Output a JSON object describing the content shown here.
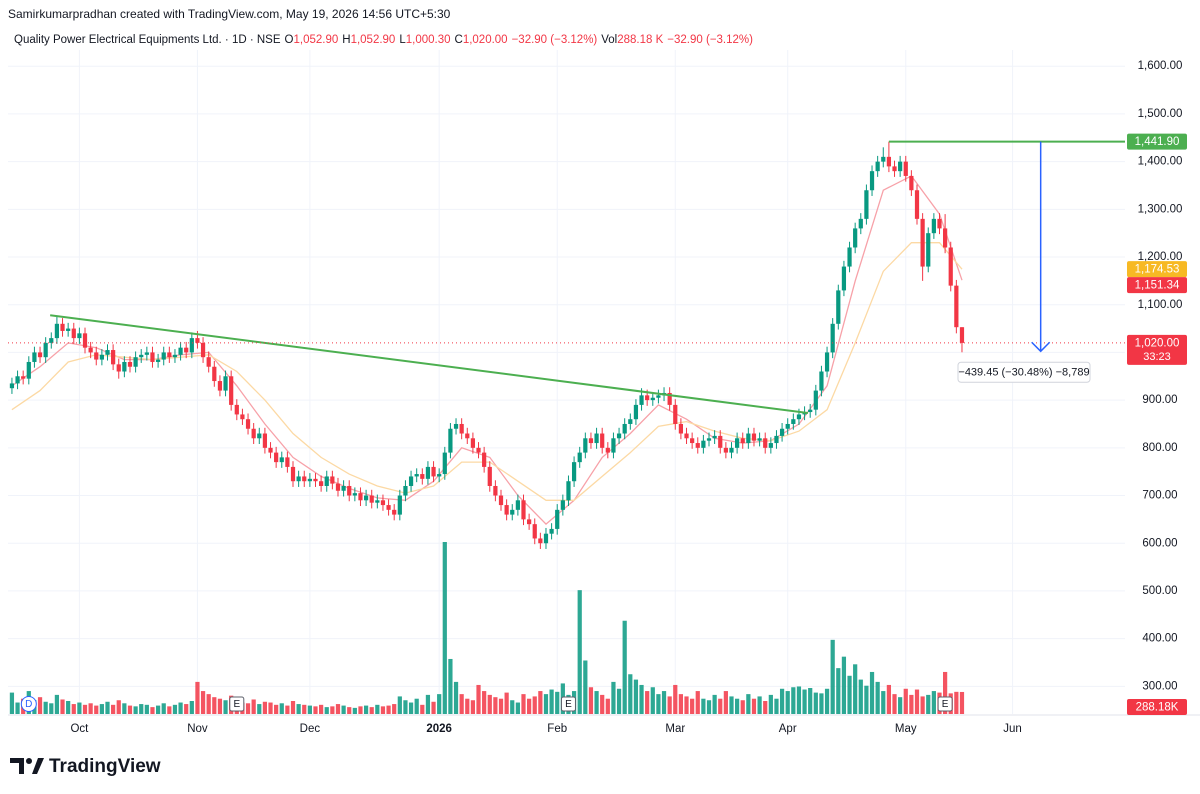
{
  "header": {
    "credit": "Samirkumarpradhan created with TradingView.com, May 19, 2026 14:56 UTC+5:30",
    "symbol": "Quality Power Electrical Equipments Ltd. · 1D · NSE",
    "legend": [
      {
        "k": "O",
        "v": "1,052.90"
      },
      {
        "k": "H",
        "v": "1,052.90"
      },
      {
        "k": "L",
        "v": "1,000.30"
      },
      {
        "k": "C",
        "v": "1,020.00"
      },
      {
        "k": "",
        "v": "−32.90 (−3.12%)"
      },
      {
        "k": "Vol",
        "v": "288.18 K"
      },
      {
        "k": "",
        "v": "−32.90 (−3.12%)"
      }
    ]
  },
  "footer": {
    "brand": "TradingView"
  },
  "chart_data": {
    "type": "candlestick",
    "up_color": "#089981",
    "down_color": "#f23645",
    "grid": true,
    "xlim": [
      -0.7,
      198
    ],
    "ylim": [
      242,
      1634
    ],
    "vlim": [
      0,
      2250
    ],
    "xticks": [
      {
        "value": 12,
        "label": "Oct"
      },
      {
        "value": 33,
        "label": "Nov"
      },
      {
        "value": 53,
        "label": "Dec"
      },
      {
        "value": 76,
        "label": "2026"
      },
      {
        "value": 97,
        "label": "Feb"
      },
      {
        "value": 118,
        "label": "Mar"
      },
      {
        "value": 138,
        "label": "Apr"
      },
      {
        "value": 159,
        "label": "May"
      },
      {
        "value": 178,
        "label": "Jun"
      }
    ],
    "yticks": [
      {
        "value": 300,
        "label": "300.00"
      },
      {
        "value": 400,
        "label": "400.00"
      },
      {
        "value": 500,
        "label": "500.00"
      },
      {
        "value": 600,
        "label": "600.00"
      },
      {
        "value": 700,
        "label": "700.00"
      },
      {
        "value": 800,
        "label": "800.00"
      },
      {
        "value": 900,
        "label": "900.00"
      },
      {
        "value": 1000,
        "label": "1,000.00"
      },
      {
        "value": 1100,
        "label": "1,100.00"
      },
      {
        "value": 1200,
        "label": "1,200.00"
      },
      {
        "value": 1300,
        "label": "1,300.00"
      },
      {
        "value": 1400,
        "label": "1,400.00"
      },
      {
        "value": 1500,
        "label": "1,500.00"
      },
      {
        "value": 1600,
        "label": "1,600.00"
      }
    ],
    "ohlc": [
      [
        925,
        947,
        913,
        935
      ],
      [
        935,
        962,
        923,
        950
      ],
      [
        950,
        962,
        933,
        945
      ],
      [
        945,
        992,
        933,
        980
      ],
      [
        980,
        1012,
        968,
        1000
      ],
      [
        1000,
        1012,
        978,
        990
      ],
      [
        990,
        1032,
        978,
        1020
      ],
      [
        1020,
        1042,
        1008,
        1030
      ],
      [
        1030,
        1075,
        1018,
        1060
      ],
      [
        1060,
        1072,
        1033,
        1045
      ],
      [
        1045,
        1062,
        1033,
        1050
      ],
      [
        1050,
        1062,
        1018,
        1030
      ],
      [
        1030,
        1052,
        1018,
        1040
      ],
      [
        1040,
        1052,
        998,
        1010
      ],
      [
        1010,
        1022,
        988,
        1000
      ],
      [
        1000,
        1012,
        973,
        985
      ],
      [
        985,
        1007,
        973,
        995
      ],
      [
        995,
        1017,
        983,
        1005
      ],
      [
        1005,
        1017,
        963,
        975
      ],
      [
        975,
        987,
        945,
        960
      ],
      [
        960,
        992,
        948,
        980
      ],
      [
        980,
        992,
        958,
        970
      ],
      [
        970,
        1002,
        958,
        990
      ],
      [
        990,
        1007,
        978,
        995
      ],
      [
        995,
        1012,
        983,
        1000
      ],
      [
        1000,
        1012,
        968,
        980
      ],
      [
        980,
        997,
        968,
        985
      ],
      [
        985,
        1012,
        973,
        1000
      ],
      [
        1000,
        1012,
        978,
        990
      ],
      [
        990,
        1007,
        978,
        995
      ],
      [
        995,
        1022,
        983,
        1010
      ],
      [
        1010,
        1022,
        988,
        1000
      ],
      [
        1000,
        1042,
        988,
        1030
      ],
      [
        1030,
        1045,
        1008,
        1020
      ],
      [
        1020,
        1032,
        978,
        990
      ],
      [
        990,
        1002,
        958,
        970
      ],
      [
        970,
        982,
        928,
        940
      ],
      [
        940,
        952,
        908,
        920
      ],
      [
        920,
        962,
        908,
        950
      ],
      [
        950,
        962,
        878,
        890
      ],
      [
        890,
        902,
        858,
        870
      ],
      [
        870,
        882,
        848,
        860
      ],
      [
        860,
        872,
        828,
        840
      ],
      [
        840,
        852,
        808,
        820
      ],
      [
        820,
        842,
        808,
        830
      ],
      [
        830,
        842,
        788,
        800
      ],
      [
        800,
        812,
        778,
        790
      ],
      [
        790,
        802,
        758,
        770
      ],
      [
        770,
        792,
        758,
        780
      ],
      [
        780,
        792,
        748,
        760
      ],
      [
        760,
        772,
        718,
        730
      ],
      [
        730,
        752,
        718,
        740
      ],
      [
        740,
        752,
        718,
        730
      ],
      [
        730,
        747,
        718,
        735
      ],
      [
        735,
        747,
        718,
        730
      ],
      [
        730,
        742,
        708,
        720
      ],
      [
        720,
        752,
        708,
        740
      ],
      [
        740,
        752,
        713,
        725
      ],
      [
        725,
        737,
        698,
        710
      ],
      [
        710,
        732,
        698,
        720
      ],
      [
        720,
        732,
        688,
        700
      ],
      [
        700,
        717,
        688,
        705
      ],
      [
        705,
        717,
        678,
        690
      ],
      [
        690,
        712,
        678,
        700
      ],
      [
        700,
        712,
        673,
        685
      ],
      [
        685,
        702,
        673,
        690
      ],
      [
        690,
        702,
        668,
        680
      ],
      [
        680,
        692,
        658,
        670
      ],
      [
        670,
        682,
        648,
        660
      ],
      [
        660,
        712,
        648,
        700
      ],
      [
        700,
        732,
        688,
        720
      ],
      [
        720,
        752,
        708,
        740
      ],
      [
        740,
        757,
        728,
        745
      ],
      [
        745,
        757,
        723,
        735
      ],
      [
        735,
        772,
        723,
        760
      ],
      [
        760,
        772,
        728,
        740
      ],
      [
        740,
        757,
        728,
        745
      ],
      [
        745,
        802,
        733,
        790
      ],
      [
        790,
        852,
        778,
        840
      ],
      [
        840,
        862,
        828,
        850
      ],
      [
        850,
        862,
        818,
        830
      ],
      [
        830,
        842,
        808,
        820
      ],
      [
        820,
        832,
        788,
        800
      ],
      [
        800,
        812,
        778,
        790
      ],
      [
        790,
        802,
        748,
        760
      ],
      [
        760,
        772,
        708,
        720
      ],
      [
        720,
        732,
        688,
        700
      ],
      [
        700,
        712,
        668,
        680
      ],
      [
        680,
        692,
        648,
        660
      ],
      [
        660,
        682,
        648,
        670
      ],
      [
        670,
        702,
        658,
        690
      ],
      [
        690,
        702,
        638,
        650
      ],
      [
        650,
        662,
        628,
        640
      ],
      [
        640,
        652,
        598,
        610
      ],
      [
        610,
        622,
        588,
        600
      ],
      [
        600,
        632,
        588,
        620
      ],
      [
        620,
        642,
        608,
        630
      ],
      [
        630,
        682,
        618,
        670
      ],
      [
        670,
        702,
        658,
        690
      ],
      [
        690,
        742,
        678,
        730
      ],
      [
        730,
        782,
        718,
        770
      ],
      [
        770,
        802,
        758,
        790
      ],
      [
        790,
        832,
        778,
        820
      ],
      [
        820,
        832,
        798,
        810
      ],
      [
        810,
        842,
        798,
        830
      ],
      [
        830,
        842,
        788,
        800
      ],
      [
        800,
        812,
        778,
        790
      ],
      [
        790,
        832,
        778,
        820
      ],
      [
        820,
        842,
        808,
        830
      ],
      [
        830,
        862,
        818,
        850
      ],
      [
        850,
        872,
        838,
        860
      ],
      [
        860,
        902,
        848,
        890
      ],
      [
        890,
        925,
        878,
        910
      ],
      [
        910,
        922,
        888,
        900
      ],
      [
        900,
        917,
        888,
        905
      ],
      [
        905,
        922,
        893,
        910
      ],
      [
        910,
        927,
        898,
        915
      ],
      [
        915,
        927,
        878,
        890
      ],
      [
        890,
        902,
        838,
        850
      ],
      [
        850,
        862,
        818,
        830
      ],
      [
        830,
        842,
        808,
        820
      ],
      [
        820,
        832,
        798,
        810
      ],
      [
        810,
        822,
        788,
        800
      ],
      [
        800,
        827,
        788,
        815
      ],
      [
        815,
        832,
        803,
        820
      ],
      [
        820,
        837,
        808,
        825
      ],
      [
        825,
        837,
        788,
        800
      ],
      [
        800,
        812,
        778,
        790
      ],
      [
        790,
        812,
        778,
        800
      ],
      [
        800,
        832,
        788,
        820
      ],
      [
        820,
        832,
        798,
        810
      ],
      [
        810,
        842,
        798,
        830
      ],
      [
        830,
        842,
        803,
        815
      ],
      [
        815,
        832,
        803,
        820
      ],
      [
        820,
        832,
        788,
        800
      ],
      [
        800,
        822,
        788,
        810
      ],
      [
        810,
        837,
        798,
        825
      ],
      [
        825,
        852,
        813,
        840
      ],
      [
        840,
        862,
        828,
        850
      ],
      [
        850,
        872,
        838,
        860
      ],
      [
        860,
        882,
        848,
        870
      ],
      [
        870,
        887,
        858,
        875
      ],
      [
        875,
        892,
        863,
        880
      ],
      [
        880,
        932,
        868,
        920
      ],
      [
        920,
        972,
        908,
        960
      ],
      [
        960,
        1012,
        948,
        1000
      ],
      [
        1000,
        1072,
        988,
        1060
      ],
      [
        1060,
        1142,
        1048,
        1130
      ],
      [
        1130,
        1192,
        1118,
        1180
      ],
      [
        1180,
        1232,
        1168,
        1220
      ],
      [
        1220,
        1272,
        1208,
        1260
      ],
      [
        1260,
        1292,
        1248,
        1280
      ],
      [
        1280,
        1352,
        1268,
        1340
      ],
      [
        1340,
        1392,
        1328,
        1380
      ],
      [
        1380,
        1412,
        1368,
        1400
      ],
      [
        1400,
        1430,
        1388,
        1410
      ],
      [
        1410,
        1441.9,
        1378,
        1390
      ],
      [
        1390,
        1402,
        1368,
        1380
      ],
      [
        1380,
        1412,
        1368,
        1400
      ],
      [
        1400,
        1412,
        1358,
        1370
      ],
      [
        1370,
        1382,
        1328,
        1340
      ],
      [
        1340,
        1352,
        1268,
        1280
      ],
      [
        1280,
        1292,
        1150,
        1180
      ],
      [
        1180,
        1262,
        1168,
        1250
      ],
      [
        1250,
        1292,
        1238,
        1280
      ],
      [
        1280,
        1292,
        1248,
        1260
      ],
      [
        1260,
        1290,
        1208,
        1220
      ],
      [
        1220,
        1232,
        1128,
        1140
      ],
      [
        1140,
        1152,
        1040,
        1052.9
      ],
      [
        1052.9,
        1052.9,
        1000.3,
        1020
      ]
    ],
    "volume": [
      280,
      150,
      200,
      300,
      180,
      220,
      160,
      140,
      250,
      190,
      170,
      130,
      150,
      120,
      140,
      110,
      130,
      160,
      120,
      180,
      140,
      110,
      100,
      130,
      120,
      90,
      110,
      140,
      100,
      120,
      150,
      130,
      170,
      420,
      300,
      260,
      220,
      200,
      180,
      240,
      160,
      150,
      140,
      190,
      130,
      160,
      150,
      120,
      140,
      110,
      170,
      130,
      120,
      110,
      100,
      120,
      90,
      100,
      130,
      110,
      90,
      80,
      100,
      110,
      90,
      120,
      100,
      110,
      130,
      230,
      180,
      150,
      200,
      120,
      250,
      160,
      260,
      2250,
      720,
      420,
      260,
      200,
      180,
      380,
      300,
      250,
      220,
      200,
      280,
      180,
      150,
      260,
      200,
      230,
      300,
      260,
      320,
      290,
      400,
      250,
      300,
      1620,
      700,
      350,
      300,
      250,
      200,
      420,
      330,
      1220,
      520,
      450,
      380,
      300,
      350,
      260,
      300,
      230,
      380,
      260,
      230,
      200,
      300,
      200,
      180,
      250,
      200,
      300,
      230,
      200,
      180,
      260,
      200,
      230,
      170,
      250,
      200,
      330,
      300,
      350,
      360,
      320,
      340,
      280,
      270,
      330,
      970,
      600,
      750,
      500,
      650,
      450,
      370,
      550,
      420,
      300,
      380,
      260,
      220,
      330,
      250,
      320,
      230,
      250,
      300,
      280,
      550,
      270,
      290,
      288.18
    ],
    "lines": [
      {
        "color": "#f7a1a8",
        "x": [
          0,
          5,
          10,
          15,
          20,
          25,
          30,
          35,
          40,
          45,
          50,
          55,
          60,
          65,
          70,
          75,
          80,
          85,
          90,
          95,
          100,
          105,
          110,
          115,
          120,
          125,
          130,
          135,
          140,
          145,
          150,
          155,
          160,
          165,
          169
        ],
        "values": [
          930,
          970,
          1020,
          1010,
          985,
          985,
          995,
          1000,
          930,
          850,
          780,
          740,
          715,
          695,
          690,
          730,
          800,
          780,
          700,
          640,
          690,
          780,
          830,
          890,
          860,
          820,
          810,
          815,
          850,
          930,
          1150,
          1340,
          1370,
          1290,
          1151.34
        ]
      },
      {
        "color": "#fcd9a4",
        "x": [
          0,
          5,
          10,
          15,
          20,
          25,
          30,
          35,
          40,
          45,
          50,
          55,
          60,
          65,
          70,
          75,
          80,
          85,
          90,
          95,
          100,
          105,
          110,
          115,
          120,
          125,
          130,
          135,
          140,
          145,
          150,
          155,
          160,
          165,
          169
        ],
        "values": [
          880,
          920,
          980,
          995,
          990,
          985,
          990,
          995,
          960,
          900,
          830,
          780,
          745,
          720,
          705,
          720,
          770,
          770,
          730,
          690,
          690,
          740,
          790,
          845,
          855,
          835,
          820,
          815,
          835,
          880,
          1020,
          1170,
          1230,
          1230,
          1174.53
        ]
      }
    ],
    "trendline": {
      "color": "#4caf50",
      "x": [
        6.8,
        141.6
      ],
      "values": [
        1078,
        873
      ]
    },
    "price_labels": [
      {
        "value": 1441.9,
        "label": "1,441.90",
        "color": "#4caf50"
      },
      {
        "value": 1174.53,
        "label": "1,174.53",
        "color": "#f7b924"
      },
      {
        "value": 1151.34,
        "label": "1,151.34",
        "color": "#f23645"
      },
      {
        "value": 1020,
        "label": "1,020.00",
        "color": "#f23645"
      }
    ],
    "level_from": 156,
    "countdown": "33:23",
    "volume_label": "288.18K",
    "measure": {
      "x": 183,
      "from": 1441.9,
      "to": 1002.45,
      "label": "−439.45 (−30.48%) −8,789",
      "color": "#2962ff"
    },
    "events": [
      {
        "x": 3,
        "label": "D"
      },
      {
        "x": 40,
        "label": "E"
      },
      {
        "x": 99,
        "label": "E"
      },
      {
        "x": 166,
        "label": "E"
      }
    ]
  }
}
